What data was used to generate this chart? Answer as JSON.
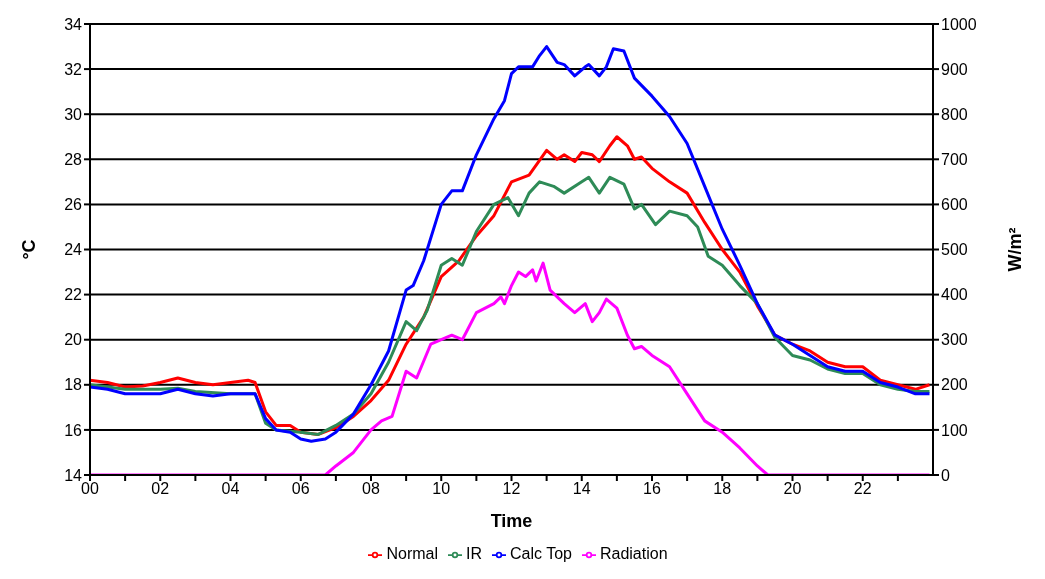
{
  "chart_data": {
    "type": "line",
    "xlabel": "Time",
    "ylabel": "°C",
    "y2label": "W/m²",
    "xlim": [
      0,
      24
    ],
    "xticks": [
      {
        "value": 0,
        "label": "00"
      },
      {
        "value": 1,
        "label": null
      },
      {
        "value": 2,
        "label": "02"
      },
      {
        "value": 3,
        "label": null
      },
      {
        "value": 4,
        "label": "04"
      },
      {
        "value": 5,
        "label": null
      },
      {
        "value": 6,
        "label": "06"
      },
      {
        "value": 7,
        "label": null
      },
      {
        "value": 8,
        "label": "08"
      },
      {
        "value": 9,
        "label": null
      },
      {
        "value": 10,
        "label": "10"
      },
      {
        "value": 11,
        "label": null
      },
      {
        "value": 12,
        "label": "12"
      },
      {
        "value": 13,
        "label": null
      },
      {
        "value": 14,
        "label": "14"
      },
      {
        "value": 15,
        "label": null
      },
      {
        "value": 16,
        "label": "16"
      },
      {
        "value": 17,
        "label": null
      },
      {
        "value": 18,
        "label": "18"
      },
      {
        "value": 19,
        "label": null
      },
      {
        "value": 20,
        "label": "20"
      },
      {
        "value": 21,
        "label": null
      },
      {
        "value": 22,
        "label": "22"
      },
      {
        "value": 23,
        "label": null
      }
    ],
    "ylim": [
      14,
      34
    ],
    "yticks": [
      14,
      16,
      18,
      20,
      22,
      24,
      26,
      28,
      30,
      32,
      34
    ],
    "y2lim": [
      0,
      1000
    ],
    "y2ticks": [
      0,
      100,
      200,
      300,
      400,
      500,
      600,
      700,
      800,
      900,
      1000
    ],
    "grid": "y",
    "legend": "bottom",
    "marker": "none",
    "line_style": "solid",
    "series": [
      {
        "name": "Normal",
        "color": "#ff0000",
        "x": [
          0,
          0.5,
          1,
          1.5,
          2,
          2.5,
          3,
          3.5,
          4,
          4.5,
          4.7,
          5,
          5.3,
          5.7,
          6,
          6.5,
          7,
          7.5,
          8,
          8.5,
          9,
          9.5,
          10,
          10.5,
          11,
          11.5,
          12,
          12.5,
          13,
          13.3,
          13.5,
          13.8,
          14,
          14.3,
          14.5,
          14.8,
          15,
          15.3,
          15.5,
          15.7,
          16,
          16.5,
          17,
          17.5,
          18,
          18.5,
          19,
          19.5,
          20,
          20.5,
          21,
          21.5,
          22,
          22.5,
          23,
          23.5,
          23.9
        ],
        "values": [
          18.2,
          18.1,
          17.9,
          17.95,
          18.1,
          18.3,
          18.1,
          18.0,
          18.1,
          18.2,
          18.1,
          16.8,
          16.2,
          16.2,
          15.9,
          15.8,
          16.1,
          16.6,
          17.3,
          18.2,
          19.8,
          21.0,
          22.8,
          23.5,
          24.6,
          25.5,
          27.0,
          27.3,
          28.4,
          28.0,
          28.2,
          27.9,
          28.3,
          28.2,
          27.9,
          28.6,
          29.0,
          28.6,
          28.0,
          28.1,
          27.6,
          27.0,
          26.5,
          25.2,
          24.0,
          23.0,
          21.5,
          20.2,
          19.8,
          19.5,
          19.0,
          18.8,
          18.8,
          18.2,
          18.0,
          17.8,
          18.0
        ]
      },
      {
        "name": "IR",
        "color": "#2e8b57",
        "x": [
          0,
          1,
          2,
          2.5,
          3,
          4,
          4.7,
          5,
          5.3,
          6,
          6.5,
          7,
          7.5,
          8,
          8.5,
          9,
          9.3,
          9.6,
          10,
          10.3,
          10.6,
          11,
          11.5,
          11.9,
          12.2,
          12.5,
          12.8,
          13.2,
          13.5,
          14,
          14.2,
          14.5,
          14.8,
          15.2,
          15.5,
          15.7,
          16.1,
          16.5,
          17,
          17.3,
          17.6,
          18,
          18.5,
          19,
          19.5,
          20,
          20.5,
          21,
          21.5,
          22,
          22.5,
          23,
          23.5,
          23.9
        ],
        "values": [
          18.0,
          17.8,
          17.8,
          17.85,
          17.7,
          17.6,
          17.6,
          16.3,
          16.0,
          15.9,
          15.8,
          16.2,
          16.7,
          17.6,
          19.0,
          20.8,
          20.4,
          21.3,
          23.3,
          23.6,
          23.3,
          24.8,
          26.0,
          26.3,
          25.5,
          26.5,
          27.0,
          26.8,
          26.5,
          27.0,
          27.2,
          26.5,
          27.2,
          26.9,
          25.8,
          26.0,
          25.1,
          25.7,
          25.5,
          25.0,
          23.7,
          23.3,
          22.4,
          21.6,
          20.1,
          19.3,
          19.1,
          18.7,
          18.5,
          18.5,
          18.0,
          17.8,
          17.7,
          17.7
        ]
      },
      {
        "name": "Calc Top",
        "color": "#0000ff",
        "x": [
          0,
          0.5,
          1,
          2,
          2.5,
          3,
          3.5,
          4,
          4.7,
          5,
          5.3,
          5.7,
          6,
          6.3,
          6.7,
          7,
          7.5,
          8,
          8.5,
          9,
          9.2,
          9.5,
          10,
          10.3,
          10.6,
          11,
          11.5,
          11.8,
          12,
          12.2,
          12.6,
          12.8,
          13,
          13.3,
          13.5,
          13.8,
          14.1,
          14.2,
          14.5,
          14.7,
          14.9,
          15.2,
          15.5,
          16,
          16.5,
          17,
          17.5,
          18,
          18.5,
          19,
          19.5,
          20,
          20.5,
          21,
          21.5,
          22,
          22.5,
          23,
          23.5,
          23.9
        ],
        "values": [
          17.9,
          17.8,
          17.6,
          17.6,
          17.8,
          17.6,
          17.5,
          17.6,
          17.6,
          16.5,
          16.0,
          15.9,
          15.6,
          15.5,
          15.6,
          15.9,
          16.7,
          18.0,
          19.5,
          22.2,
          22.4,
          23.5,
          26.0,
          26.6,
          26.6,
          28.2,
          29.8,
          30.6,
          31.8,
          32.1,
          32.1,
          32.6,
          33.0,
          32.3,
          32.2,
          31.7,
          32.1,
          32.2,
          31.7,
          32.1,
          32.9,
          32.8,
          31.6,
          30.8,
          29.9,
          28.7,
          26.8,
          24.9,
          23.3,
          21.6,
          20.2,
          19.8,
          19.3,
          18.8,
          18.6,
          18.6,
          18.1,
          17.9,
          17.6,
          17.6
        ]
      },
      {
        "name": "Radiation",
        "color": "#ff00ff",
        "axis": "y2",
        "x": [
          0,
          6.7,
          7,
          7.5,
          8,
          8.3,
          8.6,
          9,
          9.3,
          9.7,
          10,
          10.3,
          10.6,
          11,
          11.5,
          11.7,
          11.8,
          12,
          12.2,
          12.4,
          12.6,
          12.7,
          12.9,
          13.1,
          13.5,
          13.8,
          14.1,
          14.3,
          14.5,
          14.7,
          15,
          15.3,
          15.5,
          15.7,
          16,
          16.5,
          17,
          17.5,
          18,
          18.5,
          19,
          19.3,
          23.9
        ],
        "values": [
          0,
          0,
          20,
          50,
          100,
          120,
          130,
          230,
          215,
          290,
          300,
          310,
          300,
          360,
          380,
          395,
          380,
          420,
          450,
          440,
          455,
          430,
          470,
          410,
          380,
          360,
          380,
          340,
          360,
          390,
          370,
          310,
          280,
          285,
          265,
          240,
          180,
          120,
          95,
          60,
          20,
          0,
          0
        ]
      }
    ]
  }
}
